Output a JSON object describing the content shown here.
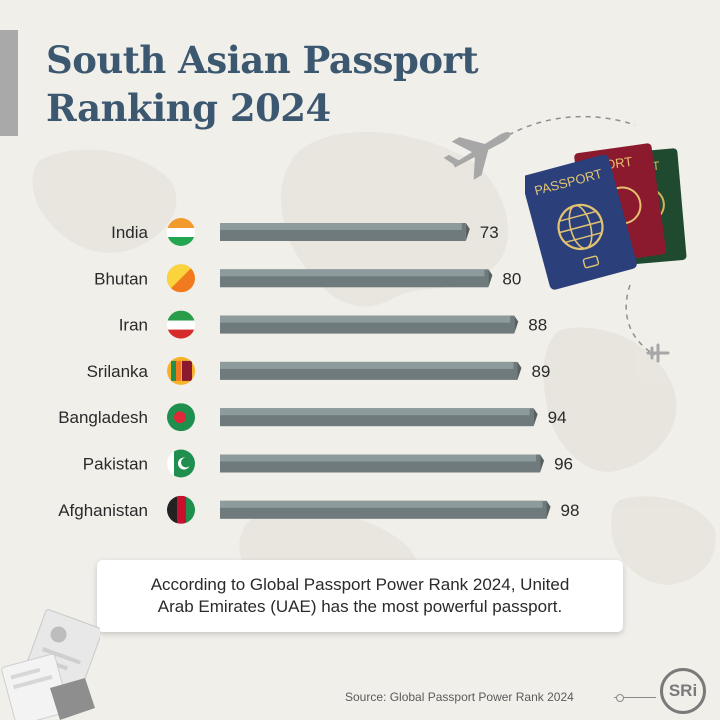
{
  "title": {
    "line1": "South Asian Passport",
    "line2": "Ranking 2024"
  },
  "chart_data": {
    "type": "bar",
    "orientation": "horizontal",
    "categories": [
      "India",
      "Bhutan",
      "Iran",
      "Srilanka",
      "Bangladesh",
      "Pakistan",
      "Afghanistan"
    ],
    "values": [
      73,
      80,
      88,
      89,
      94,
      96,
      98
    ],
    "data_labels": [
      "73",
      "80",
      "88",
      "89",
      "94",
      "96",
      "98"
    ],
    "xlim": [
      0,
      100
    ],
    "grid": false,
    "bar_color": "#6e7a7c",
    "bar_top_color": "#8e9b9c"
  },
  "flags": [
    {
      "country": "India",
      "icon": "india-flag-icon",
      "colors": [
        "#f39a2d",
        "#ffffff",
        "#22a650"
      ]
    },
    {
      "country": "Bhutan",
      "icon": "bhutan-flag-icon",
      "colors": [
        "#fbd33c",
        "#f07a1d"
      ]
    },
    {
      "country": "Iran",
      "icon": "iran-flag-icon",
      "colors": [
        "#2a9d4b",
        "#ffffff",
        "#d52b2b"
      ]
    },
    {
      "country": "Srilanka",
      "icon": "srilanka-flag-icon",
      "colors": [
        "#f6b228",
        "#8b1a2e",
        "#1f8f4e",
        "#f07a1d"
      ]
    },
    {
      "country": "Bangladesh",
      "icon": "bangladesh-flag-icon",
      "colors": [
        "#1f8f4e",
        "#e0283a"
      ]
    },
    {
      "country": "Pakistan",
      "icon": "pakistan-flag-icon",
      "colors": [
        "#1f8f4e",
        "#ffffff"
      ]
    },
    {
      "country": "Afghanistan",
      "icon": "afghanistan-flag-icon",
      "colors": [
        "#222222",
        "#c8102e",
        "#1f8f4e"
      ]
    }
  ],
  "passports": {
    "front_label": "PASSPORT",
    "back_label_1": "PORT",
    "back_label_2": "ORT"
  },
  "note": {
    "line1": "According to Global Passport Power Rank 2024, United",
    "line2": "Arab Emirates (UAE) has the most powerful passport."
  },
  "source": "Source: Global Passport Power Rank 2024",
  "logo": "SRi",
  "colors": {
    "title": "#3c5870",
    "background": "#f1efea",
    "bar": "#6e7a7c",
    "passport_blue": "#2b3f7a",
    "passport_red": "#8b1a2e",
    "passport_green": "#1f4a30"
  }
}
